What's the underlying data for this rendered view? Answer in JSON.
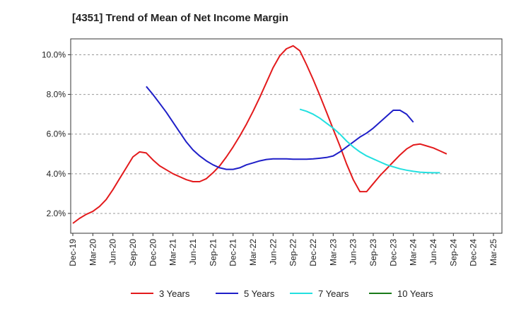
{
  "chart_data": {
    "type": "line",
    "title": "[4351]  Trend of Mean of Net Income Margin",
    "xlabel": "",
    "ylabel": "",
    "ylim": [
      1.0,
      10.8
    ],
    "y_ticks": [
      "2.0%",
      "4.0%",
      "6.0%",
      "8.0%",
      "10.0%"
    ],
    "y_tick_values": [
      2,
      4,
      6,
      8,
      10
    ],
    "x_ticks": [
      "Dec-19",
      "Mar-20",
      "Jun-20",
      "Sep-20",
      "Dec-20",
      "Mar-21",
      "Jun-21",
      "Sep-21",
      "Dec-21",
      "Mar-22",
      "Jun-22",
      "Sep-22",
      "Dec-22",
      "Mar-23",
      "Jun-23",
      "Sep-23",
      "Dec-23",
      "Mar-24",
      "Jun-24",
      "Sep-24",
      "Dec-24",
      "Mar-25"
    ],
    "grid": "horizontal dashed",
    "legend_position": "bottom",
    "series": [
      {
        "name": "3 Years",
        "color": "#e31a1c",
        "points": [
          [
            "Dec-19",
            1.5
          ],
          [
            "Jan-20",
            1.75
          ],
          [
            "Feb-20",
            1.95
          ],
          [
            "Mar-20",
            2.1
          ],
          [
            "Apr-20",
            2.35
          ],
          [
            "May-20",
            2.7
          ],
          [
            "Jun-20",
            3.2
          ],
          [
            "Jul-20",
            3.75
          ],
          [
            "Aug-20",
            4.3
          ],
          [
            "Sep-20",
            4.85
          ],
          [
            "Oct-20",
            5.1
          ],
          [
            "Nov-20",
            5.05
          ],
          [
            "Dec-20",
            4.7
          ],
          [
            "Jan-21",
            4.4
          ],
          [
            "Feb-21",
            4.2
          ],
          [
            "Mar-21",
            4.0
          ],
          [
            "Apr-21",
            3.85
          ],
          [
            "May-21",
            3.7
          ],
          [
            "Jun-21",
            3.6
          ],
          [
            "Jul-21",
            3.6
          ],
          [
            "Aug-21",
            3.75
          ],
          [
            "Sep-21",
            4.05
          ],
          [
            "Oct-21",
            4.4
          ],
          [
            "Nov-21",
            4.85
          ],
          [
            "Dec-21",
            5.35
          ],
          [
            "Jan-22",
            5.9
          ],
          [
            "Feb-22",
            6.5
          ],
          [
            "Mar-22",
            7.15
          ],
          [
            "Apr-22",
            7.85
          ],
          [
            "May-22",
            8.6
          ],
          [
            "Jun-22",
            9.35
          ],
          [
            "Jul-22",
            9.95
          ],
          [
            "Aug-22",
            10.3
          ],
          [
            "Sep-22",
            10.45
          ],
          [
            "Oct-22",
            10.2
          ],
          [
            "Nov-22",
            9.5
          ],
          [
            "Dec-22",
            8.75
          ],
          [
            "Jan-23",
            7.95
          ],
          [
            "Feb-23",
            7.1
          ],
          [
            "Mar-23",
            6.25
          ],
          [
            "Apr-23",
            5.4
          ],
          [
            "May-23",
            4.5
          ],
          [
            "Jun-23",
            3.7
          ],
          [
            "Jul-23",
            3.1
          ],
          [
            "Aug-23",
            3.1
          ],
          [
            "Sep-23",
            3.5
          ],
          [
            "Oct-23",
            3.9
          ],
          [
            "Nov-23",
            4.25
          ],
          [
            "Dec-23",
            4.6
          ],
          [
            "Jan-24",
            4.95
          ],
          [
            "Feb-24",
            5.25
          ],
          [
            "Mar-24",
            5.45
          ],
          [
            "Apr-24",
            5.5
          ],
          [
            "May-24",
            5.4
          ],
          [
            "Jun-24",
            5.3
          ],
          [
            "Jul-24",
            5.15
          ],
          [
            "Aug-24",
            5.0
          ]
        ]
      },
      {
        "name": "5 Years",
        "color": "#1f1fc8",
        "points": [
          [
            "Nov-20",
            8.4
          ],
          [
            "Dec-20",
            8.0
          ],
          [
            "Jan-21",
            7.55
          ],
          [
            "Feb-21",
            7.1
          ],
          [
            "Mar-21",
            6.6
          ],
          [
            "Apr-21",
            6.1
          ],
          [
            "May-21",
            5.6
          ],
          [
            "Jun-21",
            5.2
          ],
          [
            "Jul-21",
            4.9
          ],
          [
            "Aug-21",
            4.65
          ],
          [
            "Sep-21",
            4.45
          ],
          [
            "Oct-21",
            4.3
          ],
          [
            "Nov-21",
            4.22
          ],
          [
            "Dec-21",
            4.22
          ],
          [
            "Jan-22",
            4.3
          ],
          [
            "Feb-22",
            4.45
          ],
          [
            "Mar-22",
            4.55
          ],
          [
            "Apr-22",
            4.65
          ],
          [
            "May-22",
            4.72
          ],
          [
            "Jun-22",
            4.75
          ],
          [
            "Jul-22",
            4.75
          ],
          [
            "Aug-22",
            4.75
          ],
          [
            "Sep-22",
            4.73
          ],
          [
            "Oct-22",
            4.73
          ],
          [
            "Nov-22",
            4.73
          ],
          [
            "Dec-22",
            4.75
          ],
          [
            "Jan-23",
            4.78
          ],
          [
            "Feb-23",
            4.82
          ],
          [
            "Mar-23",
            4.9
          ],
          [
            "Apr-23",
            5.1
          ],
          [
            "May-23",
            5.35
          ],
          [
            "Jun-23",
            5.6
          ],
          [
            "Jul-23",
            5.85
          ],
          [
            "Aug-23",
            6.05
          ],
          [
            "Sep-23",
            6.3
          ],
          [
            "Oct-23",
            6.6
          ],
          [
            "Nov-23",
            6.9
          ],
          [
            "Dec-23",
            7.2
          ],
          [
            "Jan-24",
            7.2
          ],
          [
            "Feb-24",
            7.0
          ],
          [
            "Mar-24",
            6.6
          ]
        ]
      },
      {
        "name": "7 Years",
        "color": "#22e0e0",
        "points": [
          [
            "Oct-22",
            7.25
          ],
          [
            "Nov-22",
            7.15
          ],
          [
            "Dec-22",
            7.0
          ],
          [
            "Jan-23",
            6.8
          ],
          [
            "Feb-23",
            6.55
          ],
          [
            "Mar-23",
            6.3
          ],
          [
            "Apr-23",
            6.0
          ],
          [
            "May-23",
            5.65
          ],
          [
            "Jun-23",
            5.35
          ],
          [
            "Jul-23",
            5.1
          ],
          [
            "Aug-23",
            4.9
          ],
          [
            "Sep-23",
            4.75
          ],
          [
            "Oct-23",
            4.6
          ],
          [
            "Nov-23",
            4.45
          ],
          [
            "Dec-23",
            4.35
          ],
          [
            "Jan-24",
            4.25
          ],
          [
            "Feb-24",
            4.18
          ],
          [
            "Mar-24",
            4.12
          ],
          [
            "Apr-24",
            4.08
          ],
          [
            "May-24",
            4.06
          ],
          [
            "Jun-24",
            4.05
          ],
          [
            "Jul-24",
            4.05
          ]
        ]
      },
      {
        "name": "10 Years",
        "color": "#1a7a1a",
        "points": []
      }
    ]
  }
}
